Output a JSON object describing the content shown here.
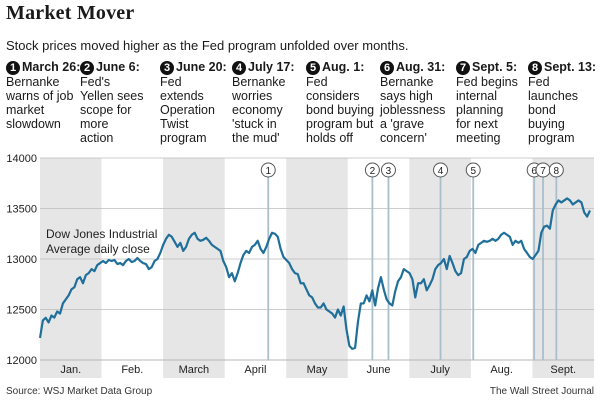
{
  "header": {
    "title": "Market Mover",
    "subtitle": "Stock prices moved higher as the Fed program unfolded over months."
  },
  "events": [
    {
      "num": "1",
      "date": "March 26:",
      "text": "Bernanke\nwarns of job\nmarket\nslowdown"
    },
    {
      "num": "2",
      "date": "June 6:",
      "text": "Fed's\nYellen sees\nscope for\nmore\naction"
    },
    {
      "num": "3",
      "date": "June 20:",
      "text": "Fed\nextends\nOperation\nTwist\nprogram"
    },
    {
      "num": "4",
      "date": "July 17:",
      "text": "Bernanke\nworries\neconomy\n'stuck in\nthe mud'"
    },
    {
      "num": "5",
      "date": "Aug. 1:",
      "text": "Fed\nconsiders\nbond buying\nprogram but\nholds off"
    },
    {
      "num": "6",
      "date": "Aug. 31:",
      "text": "Bernanke\nsays high\njoblessness\na 'grave\nconcern'"
    },
    {
      "num": "7",
      "date": "Sept. 5:",
      "text": "Fed begins\ninternal\nplanning\nfor next\nmeeting"
    },
    {
      "num": "8",
      "date": "Sept. 13:",
      "text": "Fed\nlaunches\nbond\nbuying\nprogram"
    }
  ],
  "footer": {
    "source": "Source: WSJ Market Data Group",
    "credit": "The Wall Street Journal"
  },
  "colors": {
    "line": "#1f6f9a",
    "band": "#e6e6e6",
    "marker": "#a9bfcc",
    "grid": "#bdbdbd"
  },
  "chart_data": {
    "type": "line",
    "ylabel": "",
    "xlabel": "",
    "ylim": [
      12000,
      14000
    ],
    "yticks": [
      12000,
      12500,
      13000,
      13500,
      14000
    ],
    "months": [
      "Jan.",
      "Feb.",
      "March",
      "April",
      "May",
      "June",
      "July",
      "Aug.",
      "Sept."
    ],
    "annotation": "Dow Jones Industrial\nAverage daily close",
    "grid": true,
    "series": [
      {
        "values": [
          12218,
          12392,
          12418,
          12372,
          12440,
          12420,
          12480,
          12460,
          12560,
          12600,
          12640,
          12700,
          12720,
          12800,
          12820,
          12760,
          12840,
          12860,
          12900,
          12880,
          12940,
          12960,
          12980,
          12960,
          12990,
          12980,
          12990,
          12950,
          12960,
          12940,
          12980,
          13000,
          12970,
          12980,
          13010,
          12980,
          12960,
          12950,
          12900,
          12920,
          12980,
          13000,
          13060,
          13140,
          13200,
          13240,
          13220,
          13170,
          13120,
          13160,
          13080,
          13120,
          13200,
          13240,
          13260,
          13200,
          13180,
          13190,
          13210,
          13180,
          13140,
          13120,
          13100,
          13080,
          12980,
          12920,
          12820,
          12860,
          12780,
          12860,
          12960,
          13040,
          13080,
          13060,
          13120,
          13140,
          13180,
          13100,
          13060,
          13120,
          13200,
          13260,
          13250,
          13220,
          13100,
          13020,
          12990,
          12960,
          12900,
          12860,
          12850,
          12760,
          12760,
          12700,
          12640,
          12620,
          12560,
          12520,
          12520,
          12560,
          12500,
          12480,
          12460,
          12420,
          12500,
          12440,
          12530,
          12300,
          12140,
          12110,
          12120,
          12380,
          12560,
          12560,
          12640,
          12580,
          12690,
          12540,
          12710,
          12820,
          12700,
          12600,
          12560,
          12540,
          12680,
          12780,
          12820,
          12900,
          12880,
          12860,
          12800,
          12620,
          12760,
          12760,
          12800,
          12690,
          12740,
          12800,
          12900,
          12940,
          12960,
          13000,
          12900,
          13030,
          12960,
          12880,
          12840,
          12860,
          13000,
          13020,
          13080,
          13100,
          13060,
          13140,
          13160,
          13180,
          13170,
          13180,
          13200,
          13180,
          13200,
          13240,
          13260,
          13240,
          13220,
          13140,
          13180,
          13160,
          13180,
          13100,
          13060,
          13020,
          13000,
          13040,
          13080,
          13260,
          13320,
          13330,
          13300,
          13480,
          13540,
          13580,
          13560,
          13580,
          13600,
          13580,
          13540,
          13560,
          13580,
          13560,
          13460,
          13420,
          13480
        ]
      }
    ],
    "event_markers": [
      {
        "label": "1",
        "x": 0.412
      },
      {
        "label": "2",
        "x": 0.6
      },
      {
        "label": "3",
        "x": 0.629
      },
      {
        "label": "4",
        "x": 0.723
      },
      {
        "label": "5",
        "x": 0.782
      },
      {
        "label": "6",
        "x": 0.892
      },
      {
        "label": "7",
        "x": 0.908
      },
      {
        "label": "8",
        "x": 0.932
      }
    ]
  }
}
